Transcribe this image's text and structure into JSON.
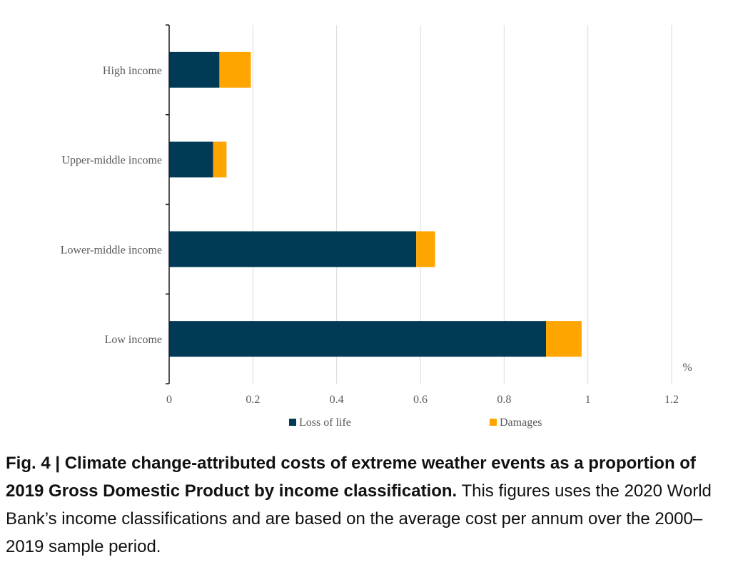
{
  "chart_data": {
    "type": "bar",
    "orientation": "horizontal",
    "stacked": true,
    "categories": [
      "High income",
      "Upper-middle income",
      "Lower-middle income",
      "Low income"
    ],
    "series": [
      {
        "name": "Loss of life",
        "color": "#003a57",
        "values": [
          0.12,
          0.105,
          0.59,
          0.9
        ]
      },
      {
        "name": "Damages",
        "color": "#ffa500",
        "values": [
          0.075,
          0.032,
          0.045,
          0.085
        ]
      }
    ],
    "xlim": [
      0,
      1.2
    ],
    "xticks": [
      "0",
      "0.2",
      "0.4",
      "0.6",
      "0.8",
      "1",
      "1.2"
    ],
    "unit_label": "%",
    "grid": "vertical",
    "legend_position": "bottom"
  },
  "caption": {
    "bold": "Fig. 4 | Climate change-attributed costs of extreme weather events as a proportion of 2019 Gross Domestic Product by income classification.",
    "text": " This figures uses the 2020 World Bank’s income classifications and are based on the average cost per annum over the 2000–2019 sample period."
  }
}
